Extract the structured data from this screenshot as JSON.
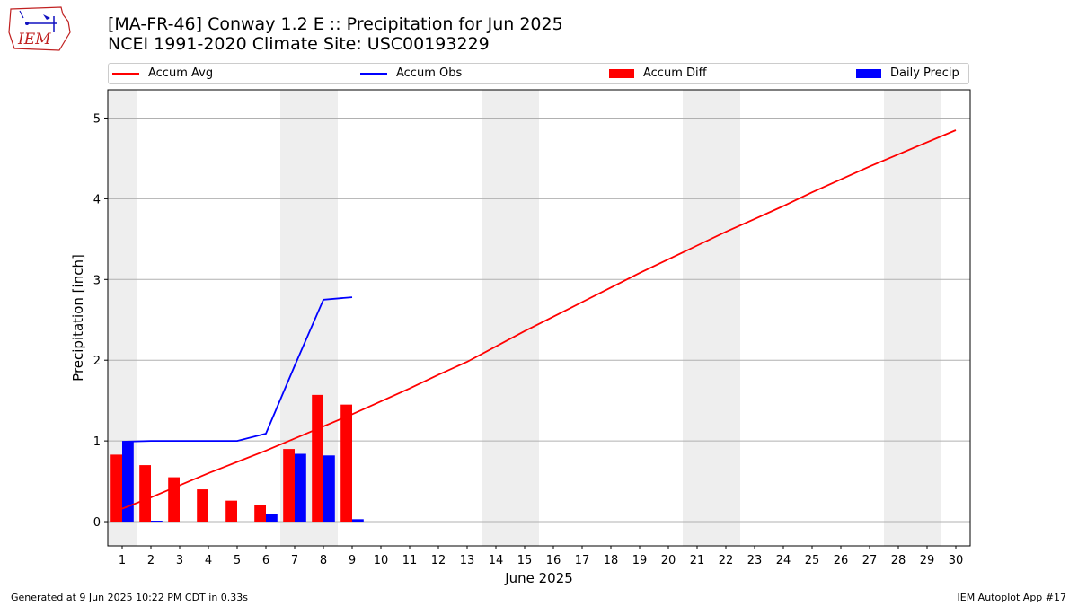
{
  "title": {
    "line1": "[MA-FR-46] Conway 1.2 E :: Precipitation for Jun 2025",
    "line2": "NCEI 1991-2020 Climate Site: USC00193229"
  },
  "logo": {
    "text": "IEM",
    "icon": "iem-logo-icon"
  },
  "footer": {
    "left": "Generated at 9 Jun 2025 10:22 PM CDT in 0.33s",
    "right": "IEM Autoplot App #17"
  },
  "colors": {
    "accum_avg": "#ff0000",
    "accum_obs": "#0000ff",
    "accum_diff": "#ff0000",
    "daily_precip": "#0000ff",
    "weekend_shade": "#eeeeee",
    "grid": "#b0b0b0"
  },
  "chart_data": {
    "type": "bar",
    "xlabel": "June 2025",
    "ylabel": "Precipitation [inch]",
    "xlim": [
      0.5,
      30.5
    ],
    "ylim": [
      -0.3,
      5.35
    ],
    "yticks": [
      0,
      1,
      2,
      3,
      4,
      5
    ],
    "xticks": [
      1,
      2,
      3,
      4,
      5,
      6,
      7,
      8,
      9,
      10,
      11,
      12,
      13,
      14,
      15,
      16,
      17,
      18,
      19,
      20,
      21,
      22,
      23,
      24,
      25,
      26,
      27,
      28,
      29,
      30
    ],
    "grid": "horizontal",
    "legend_position": "top",
    "weekend_days": [
      1,
      7,
      8,
      14,
      15,
      21,
      22,
      28,
      29
    ],
    "legend": [
      "Accum Avg",
      "Accum Obs",
      "Accum Diff",
      "Daily Precip"
    ],
    "series": [
      {
        "name": "Accum Avg",
        "kind": "line",
        "x": [
          1,
          2,
          3,
          4,
          5,
          6,
          7,
          8,
          9,
          10,
          11,
          12,
          13,
          14,
          15,
          16,
          17,
          18,
          19,
          20,
          21,
          22,
          23,
          24,
          25,
          26,
          27,
          28,
          29,
          30
        ],
        "values": [
          0.16,
          0.3,
          0.45,
          0.6,
          0.74,
          0.88,
          1.03,
          1.18,
          1.33,
          1.49,
          1.65,
          1.82,
          1.98,
          2.17,
          2.36,
          2.54,
          2.72,
          2.9,
          3.08,
          3.25,
          3.42,
          3.59,
          3.75,
          3.91,
          4.08,
          4.24,
          4.4,
          4.55,
          4.7,
          4.85
        ]
      },
      {
        "name": "Accum Obs",
        "kind": "line",
        "x": [
          1,
          2,
          3,
          4,
          5,
          6,
          7,
          8,
          9
        ],
        "values": [
          0.99,
          1.0,
          1.0,
          1.0,
          1.0,
          1.09,
          1.93,
          2.75,
          2.78
        ]
      },
      {
        "name": "Accum Diff",
        "kind": "bar",
        "x": [
          1,
          2,
          3,
          4,
          5,
          6,
          7,
          8,
          9
        ],
        "values": [
          0.83,
          0.7,
          0.55,
          0.4,
          0.26,
          0.21,
          0.9,
          1.57,
          1.45
        ]
      },
      {
        "name": "Daily Precip",
        "kind": "bar",
        "x": [
          1,
          2,
          3,
          4,
          5,
          6,
          7,
          8,
          9
        ],
        "values": [
          0.99,
          0.01,
          0.0,
          0.0,
          0.0,
          0.09,
          0.84,
          0.82,
          0.03
        ]
      }
    ]
  }
}
